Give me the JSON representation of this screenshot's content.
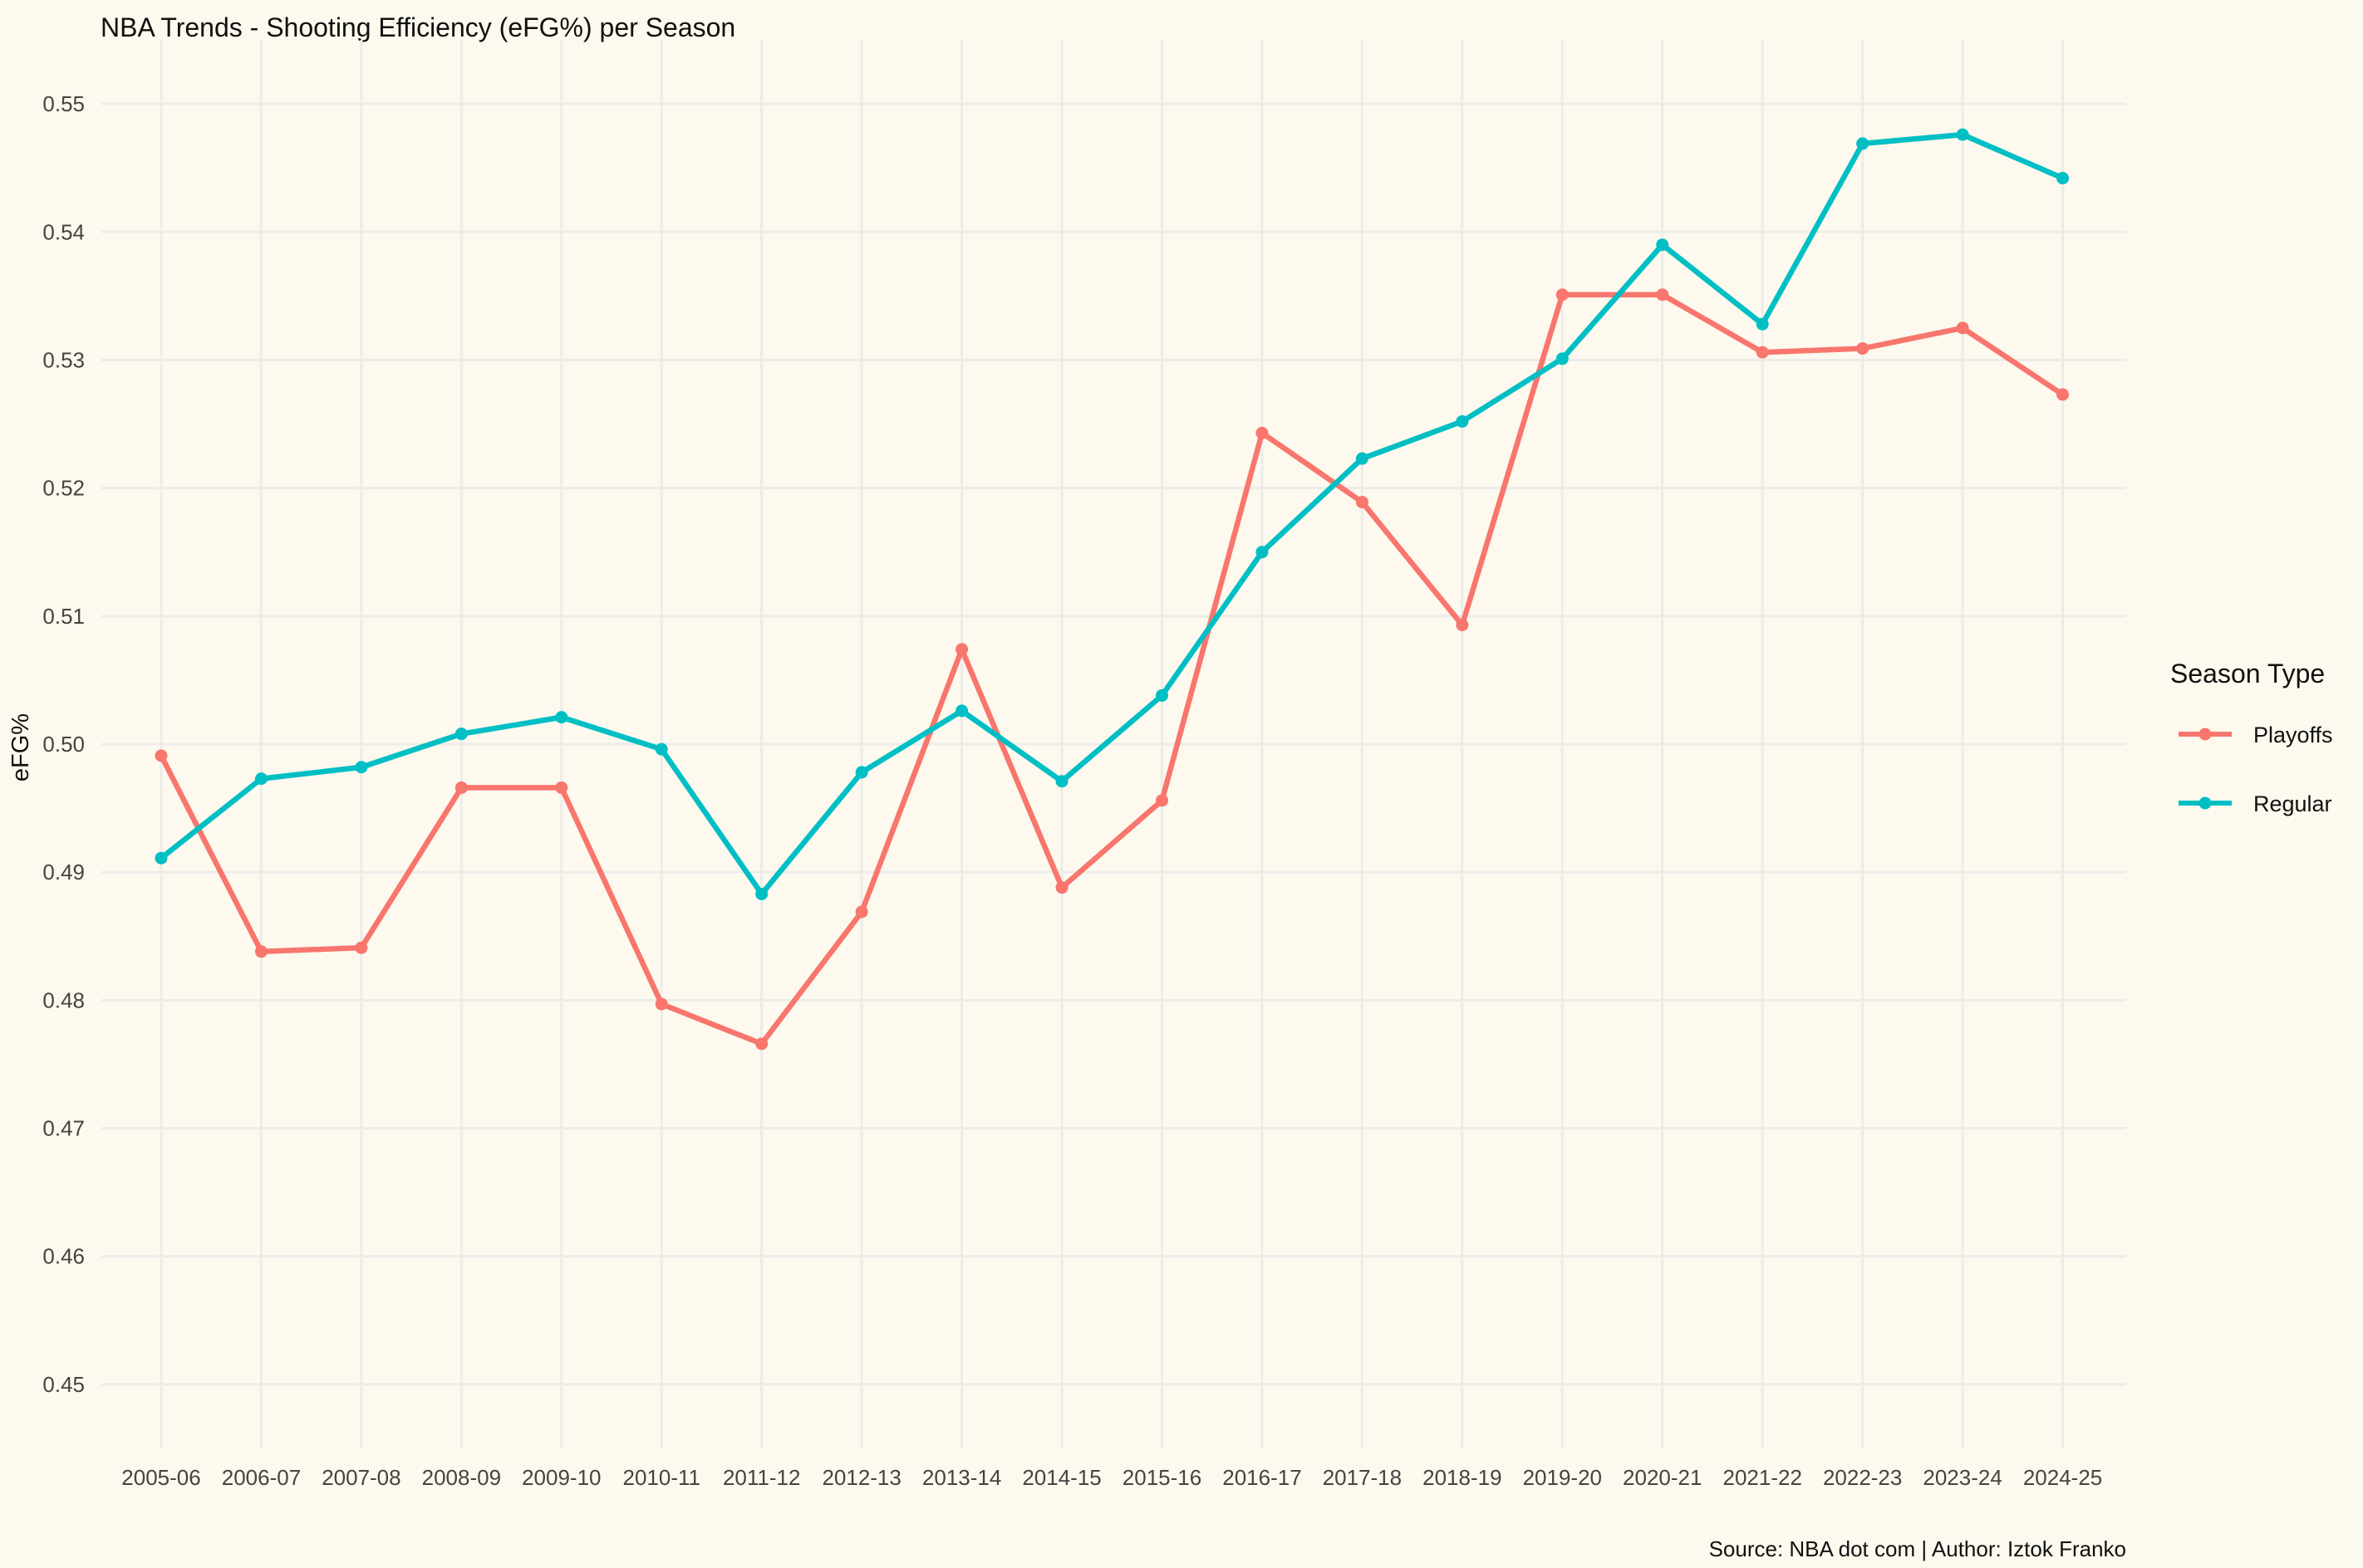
{
  "chart_data": {
    "type": "line",
    "title": "NBA Trends - Shooting Efficiency (eFG%) per Season",
    "xlabel": "",
    "ylabel": "eFG%",
    "caption": "Source: NBA dot com | Author: Iztok Franko",
    "categories": [
      "2005-06",
      "2006-07",
      "2007-08",
      "2008-09",
      "2009-10",
      "2010-11",
      "2011-12",
      "2012-13",
      "2013-14",
      "2014-15",
      "2015-16",
      "2016-17",
      "2017-18",
      "2018-19",
      "2019-20",
      "2020-21",
      "2021-22",
      "2022-23",
      "2023-24",
      "2024-25"
    ],
    "y_ticks": [
      "0.45",
      "0.46",
      "0.47",
      "0.48",
      "0.49",
      "0.50",
      "0.51",
      "0.52",
      "0.53",
      "0.54",
      "0.55"
    ],
    "ylim": [
      0.445,
      0.555
    ],
    "grid": true,
    "legend": {
      "title": "Season Type",
      "position": "right"
    },
    "series": [
      {
        "name": "Playoffs",
        "color": "#f8766d",
        "values": [
          0.4991,
          0.4838,
          0.4841,
          0.4966,
          0.4966,
          0.4797,
          0.4766,
          0.4869,
          0.5074,
          0.4888,
          0.4956,
          0.5243,
          0.5189,
          0.5093,
          0.5351,
          0.5351,
          0.5306,
          0.5309,
          0.5325,
          0.5273
        ]
      },
      {
        "name": "Regular",
        "color": "#00bfc4",
        "values": [
          0.4911,
          0.4973,
          0.4982,
          0.5008,
          0.5021,
          0.4996,
          0.4883,
          0.4978,
          0.5026,
          0.4971,
          0.5038,
          0.515,
          0.5223,
          0.5252,
          0.5301,
          0.539,
          0.5328,
          0.5469,
          0.5476,
          0.5442
        ]
      }
    ]
  }
}
